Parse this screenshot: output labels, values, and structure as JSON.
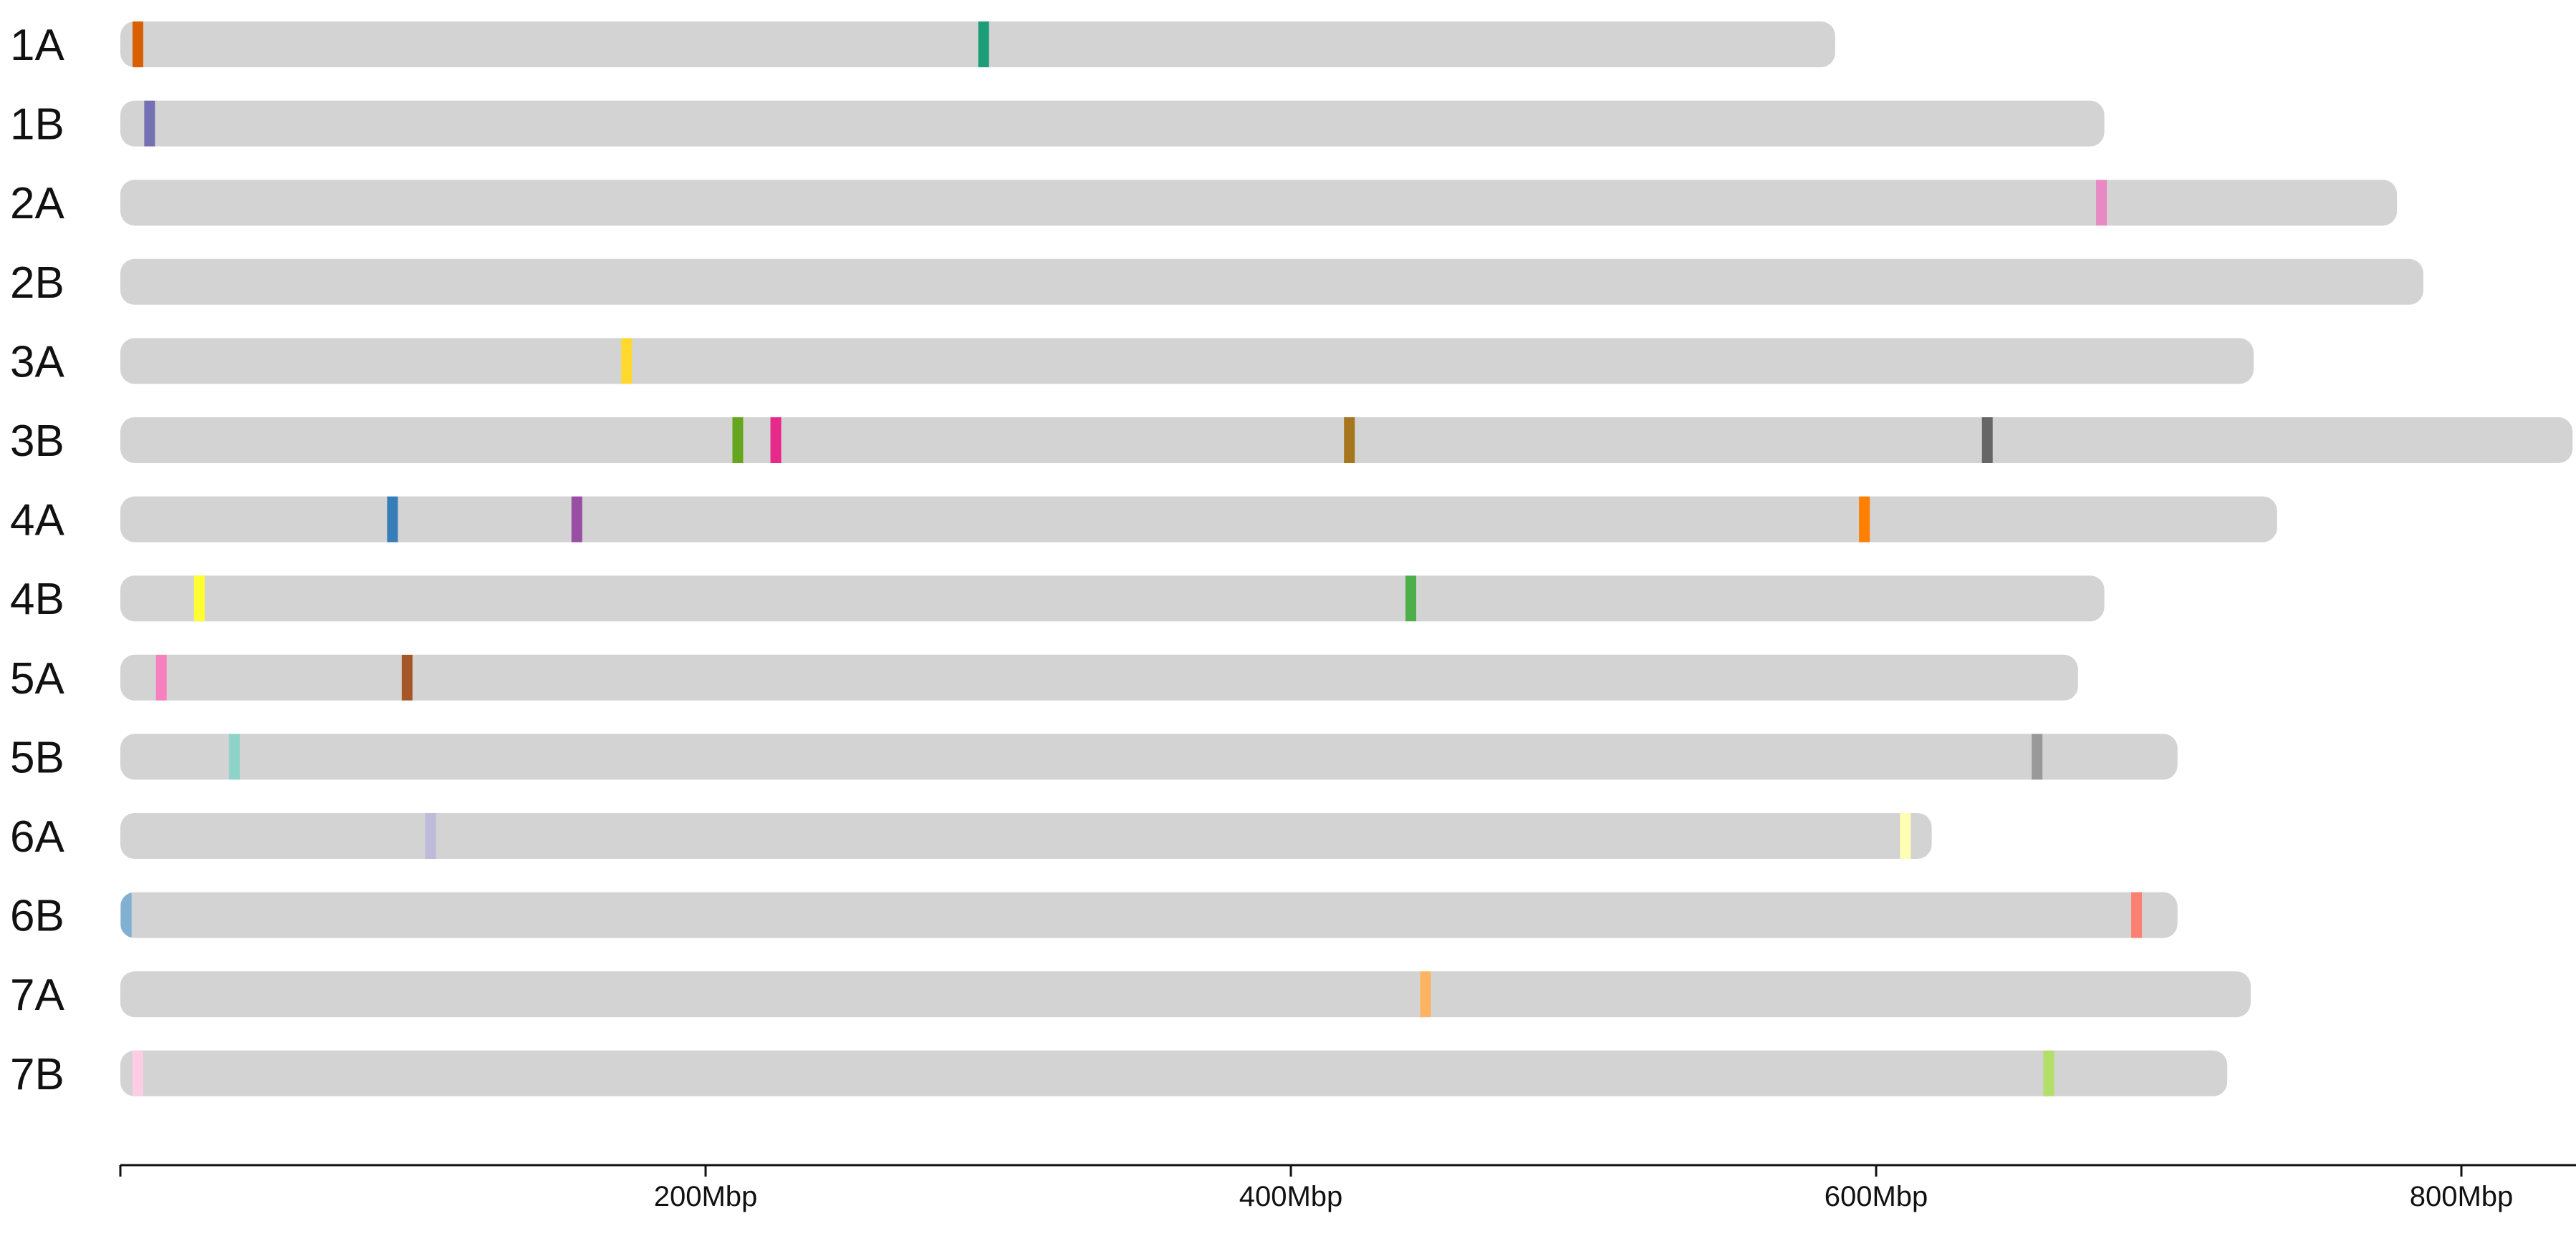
{
  "chart_data": {
    "type": "chromosome-ideogram",
    "title": "",
    "xlabel": "",
    "ylabel": "",
    "x_unit": "Mbp",
    "xlim": [
      0,
      840
    ],
    "grid": false,
    "legend": "none",
    "x_ticks": [
      {
        "value": 0,
        "label": ""
      },
      {
        "value": 200,
        "label": "200Mbp"
      },
      {
        "value": 400,
        "label": "400Mbp"
      },
      {
        "value": 600,
        "label": "600Mbp"
      },
      {
        "value": 800,
        "label": "800Mbp"
      },
      {
        "value": 840,
        "label": ""
      }
    ],
    "chromosome_color": "#d3d3d3",
    "chromosomes": [
      {
        "name": "1A",
        "length": 586,
        "markers": [
          {
            "pos": 6,
            "color": "#d95f02"
          },
          {
            "pos": 295,
            "color": "#1b9e77"
          }
        ]
      },
      {
        "name": "1B",
        "length": 678,
        "markers": [
          {
            "pos": 10,
            "color": "#7570b3"
          }
        ]
      },
      {
        "name": "2A",
        "length": 778,
        "markers": [
          {
            "pos": 677,
            "color": "#e78ac3"
          }
        ]
      },
      {
        "name": "2B",
        "length": 787,
        "markers": []
      },
      {
        "name": "3A",
        "length": 729,
        "markers": [
          {
            "pos": 173,
            "color": "#ffd92f"
          }
        ]
      },
      {
        "name": "3B",
        "length": 838,
        "markers": [
          {
            "pos": 211,
            "color": "#66a61e"
          },
          {
            "pos": 224,
            "color": "#e7298a"
          },
          {
            "pos": 420,
            "color": "#a6761d"
          },
          {
            "pos": 638,
            "color": "#666666"
          }
        ]
      },
      {
        "name": "4A",
        "length": 737,
        "markers": [
          {
            "pos": 93,
            "color": "#377eb8"
          },
          {
            "pos": 156,
            "color": "#984ea3"
          },
          {
            "pos": 596,
            "color": "#ff7f00"
          }
        ]
      },
      {
        "name": "4B",
        "length": 678,
        "markers": [
          {
            "pos": 27,
            "color": "#ffff33"
          },
          {
            "pos": 441,
            "color": "#4daf4a"
          }
        ]
      },
      {
        "name": "5A",
        "length": 669,
        "markers": [
          {
            "pos": 14,
            "color": "#f781bf"
          },
          {
            "pos": 98,
            "color": "#a65628"
          }
        ]
      },
      {
        "name": "5B",
        "length": 703,
        "markers": [
          {
            "pos": 39,
            "color": "#8dd3c7"
          },
          {
            "pos": 655,
            "color": "#999999"
          }
        ]
      },
      {
        "name": "6A",
        "length": 619,
        "markers": [
          {
            "pos": 106,
            "color": "#bebada"
          },
          {
            "pos": 610,
            "color": "#ffffb3"
          }
        ]
      },
      {
        "name": "6B",
        "length": 703,
        "markers": [
          {
            "pos": 2,
            "color": "#80b1d3"
          },
          {
            "pos": 689,
            "color": "#fb8072"
          }
        ]
      },
      {
        "name": "7A",
        "length": 728,
        "markers": [
          {
            "pos": 446,
            "color": "#fdb462"
          }
        ]
      },
      {
        "name": "7B",
        "length": 720,
        "markers": [
          {
            "pos": 6,
            "color": "#fccde5"
          },
          {
            "pos": 659,
            "color": "#b3de69"
          }
        ]
      }
    ]
  }
}
